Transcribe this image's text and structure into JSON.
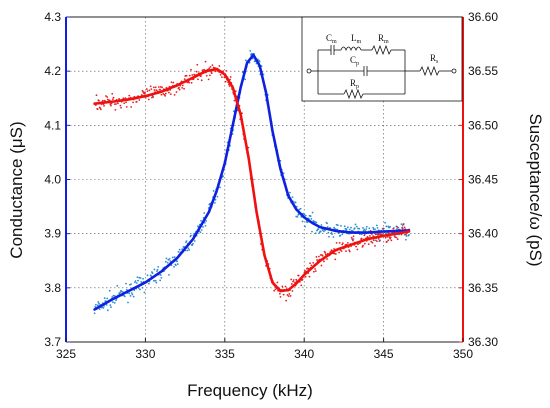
{
  "chart_data": {
    "type": "scatter",
    "title": "",
    "xlabel": "Frequency (kHz)",
    "ylabel_left": "Conductance (μS)",
    "ylabel_right": "Susceptance/ω (pS)",
    "xlim": [
      325,
      350
    ],
    "ylim_left": [
      3.7,
      4.3
    ],
    "ylim_right": [
      36.3,
      36.6
    ],
    "grid": true,
    "x_ticks": [
      "325",
      "330",
      "335",
      "340",
      "345",
      "350"
    ],
    "y_left_ticks": [
      "3.7",
      "3.8",
      "3.9",
      "4.0",
      "4.1",
      "4.2",
      "4.3"
    ],
    "y_right_ticks": [
      "36.30",
      "36.35",
      "36.40",
      "36.45",
      "36.50",
      "36.55",
      "36.60"
    ],
    "colors": {
      "conductance_fit": "#1020e0",
      "conductance_points": "#2a8fd0",
      "susceptance_fit": "#f01010",
      "susceptance_points": "#e82020",
      "left_axis": "#1020e0",
      "right_axis": "#f01010"
    },
    "series": [
      {
        "axis": "left",
        "style": "fit-line",
        "x": [
          326.8,
          328,
          329,
          330,
          331,
          332,
          333,
          334,
          334.5,
          335,
          335.5,
          336,
          336.4,
          336.8,
          337.2,
          337.6,
          338,
          338.5,
          339,
          339.5,
          340,
          340.5,
          341,
          342,
          343,
          344,
          345,
          346.6
        ],
        "y": [
          3.76,
          3.78,
          3.795,
          3.81,
          3.83,
          3.855,
          3.89,
          3.94,
          3.98,
          4.03,
          4.1,
          4.17,
          4.215,
          4.23,
          4.21,
          4.16,
          4.09,
          4.02,
          3.97,
          3.945,
          3.93,
          3.92,
          3.912,
          3.905,
          3.902,
          3.902,
          3.904,
          3.906
        ]
      },
      {
        "axis": "right",
        "style": "fit-line",
        "x": [
          326.8,
          328,
          329,
          330,
          331,
          332,
          333,
          333.8,
          334.5,
          335,
          335.5,
          336,
          336.5,
          337,
          337.5,
          338,
          338.5,
          339,
          339.5,
          340,
          341,
          342,
          343,
          344,
          345,
          346.6
        ],
        "y": [
          36.52,
          36.522,
          36.524,
          36.527,
          36.531,
          36.537,
          36.544,
          36.55,
          36.552,
          36.547,
          36.535,
          36.51,
          36.47,
          36.42,
          36.38,
          36.355,
          36.347,
          36.348,
          36.354,
          36.362,
          36.375,
          36.385,
          36.39,
          36.395,
          36.398,
          36.402
        ]
      }
    ],
    "circuit_labels": {
      "cm": "C",
      "cm_sub": "m",
      "lm": "L",
      "lm_sub": "m",
      "rm": "R",
      "rm_sub": "m",
      "cp": "C",
      "cp_sub": "p",
      "rp": "R",
      "rp_sub": "p",
      "rs": "R",
      "rs_sub": "s"
    }
  }
}
